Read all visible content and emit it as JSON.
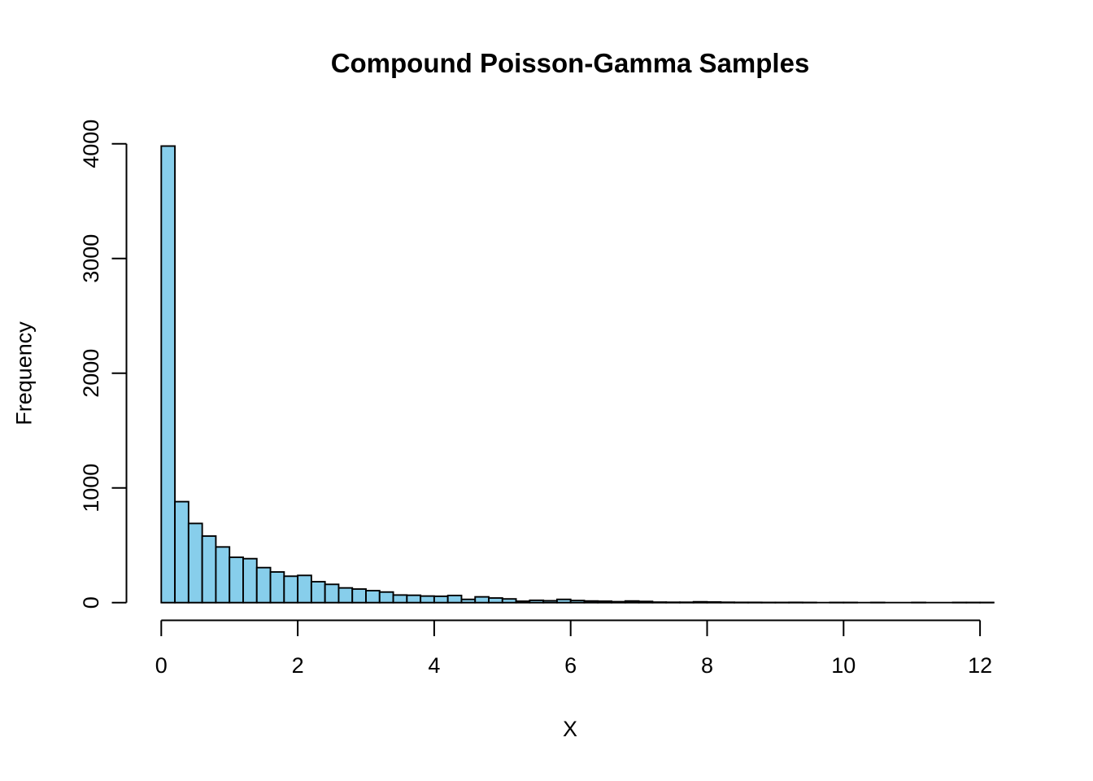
{
  "title": "Compound Poisson-Gamma Samples",
  "chart_data": {
    "type": "bar",
    "subtype": "histogram",
    "title": "Compound Poisson-Gamma Samples",
    "xlabel": "X",
    "ylabel": "Frequency",
    "bin_start": 0,
    "bin_width": 0.2,
    "counts": [
      3980,
      880,
      690,
      580,
      485,
      395,
      383,
      305,
      267,
      230,
      237,
      182,
      159,
      128,
      118,
      104,
      92,
      66,
      64,
      57,
      55,
      62,
      28,
      50,
      40,
      32,
      12,
      20,
      16,
      28,
      18,
      14,
      12,
      8,
      14,
      10,
      4,
      3,
      3,
      7,
      5,
      3,
      2,
      2,
      1,
      1,
      2,
      1,
      0,
      1,
      1,
      0,
      1,
      0,
      0,
      1,
      0,
      0,
      1,
      1,
      1
    ],
    "x_ticks": [
      0,
      2,
      4,
      6,
      8,
      10,
      12
    ],
    "y_ticks": [
      0,
      1000,
      2000,
      3000,
      4000
    ],
    "xlim": [
      0,
      12.2
    ],
    "ylim": [
      0,
      4000
    ],
    "grid": false,
    "legend_position": "none",
    "colors": {
      "bar_fill": "#87CEEB",
      "bar_stroke": "#000000",
      "axis": "#000000",
      "text": "#000000",
      "background": "#FFFFFF"
    }
  }
}
